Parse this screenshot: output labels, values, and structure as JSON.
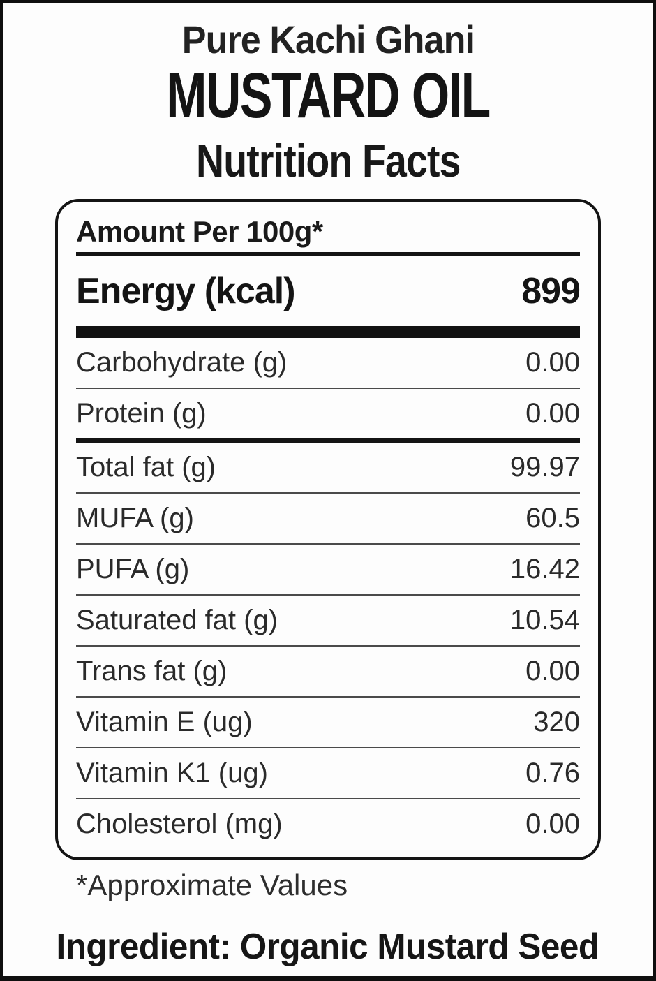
{
  "header": {
    "subtitle": "Pure Kachi Ghani",
    "title": "MUSTARD OIL",
    "section": "Nutrition Facts"
  },
  "panel": {
    "amount_header": "Amount Per 100g*",
    "energy": {
      "label": "Energy (kcal)",
      "value": "899"
    },
    "rows": [
      {
        "label": "Carbohydrate (g)",
        "value": "0.00"
      },
      {
        "label": "Protein (g)",
        "value": "0.00"
      },
      {
        "label": "Total fat (g)",
        "value": "99.97"
      },
      {
        "label": "MUFA (g)",
        "value": "60.5"
      },
      {
        "label": "PUFA (g)",
        "value": "16.42"
      },
      {
        "label": "Saturated fat (g)",
        "value": "10.54"
      },
      {
        "label": "Trans fat (g)",
        "value": "0.00"
      },
      {
        "label": "Vitamin E (ug)",
        "value": "320"
      },
      {
        "label": "Vitamin K1 (ug)",
        "value": "0.76"
      },
      {
        "label": "Cholesterol (mg)",
        "value": "0.00"
      }
    ]
  },
  "footnote": "*Approximate Values",
  "ingredient": "Ingredient: Organic Mustard Seed",
  "colors": {
    "background": "#fdfdfd",
    "border": "#0f0f0f",
    "text": "#1c1c1c",
    "divider_thin": "#4a4a4a",
    "divider_heavy": "#141414"
  }
}
